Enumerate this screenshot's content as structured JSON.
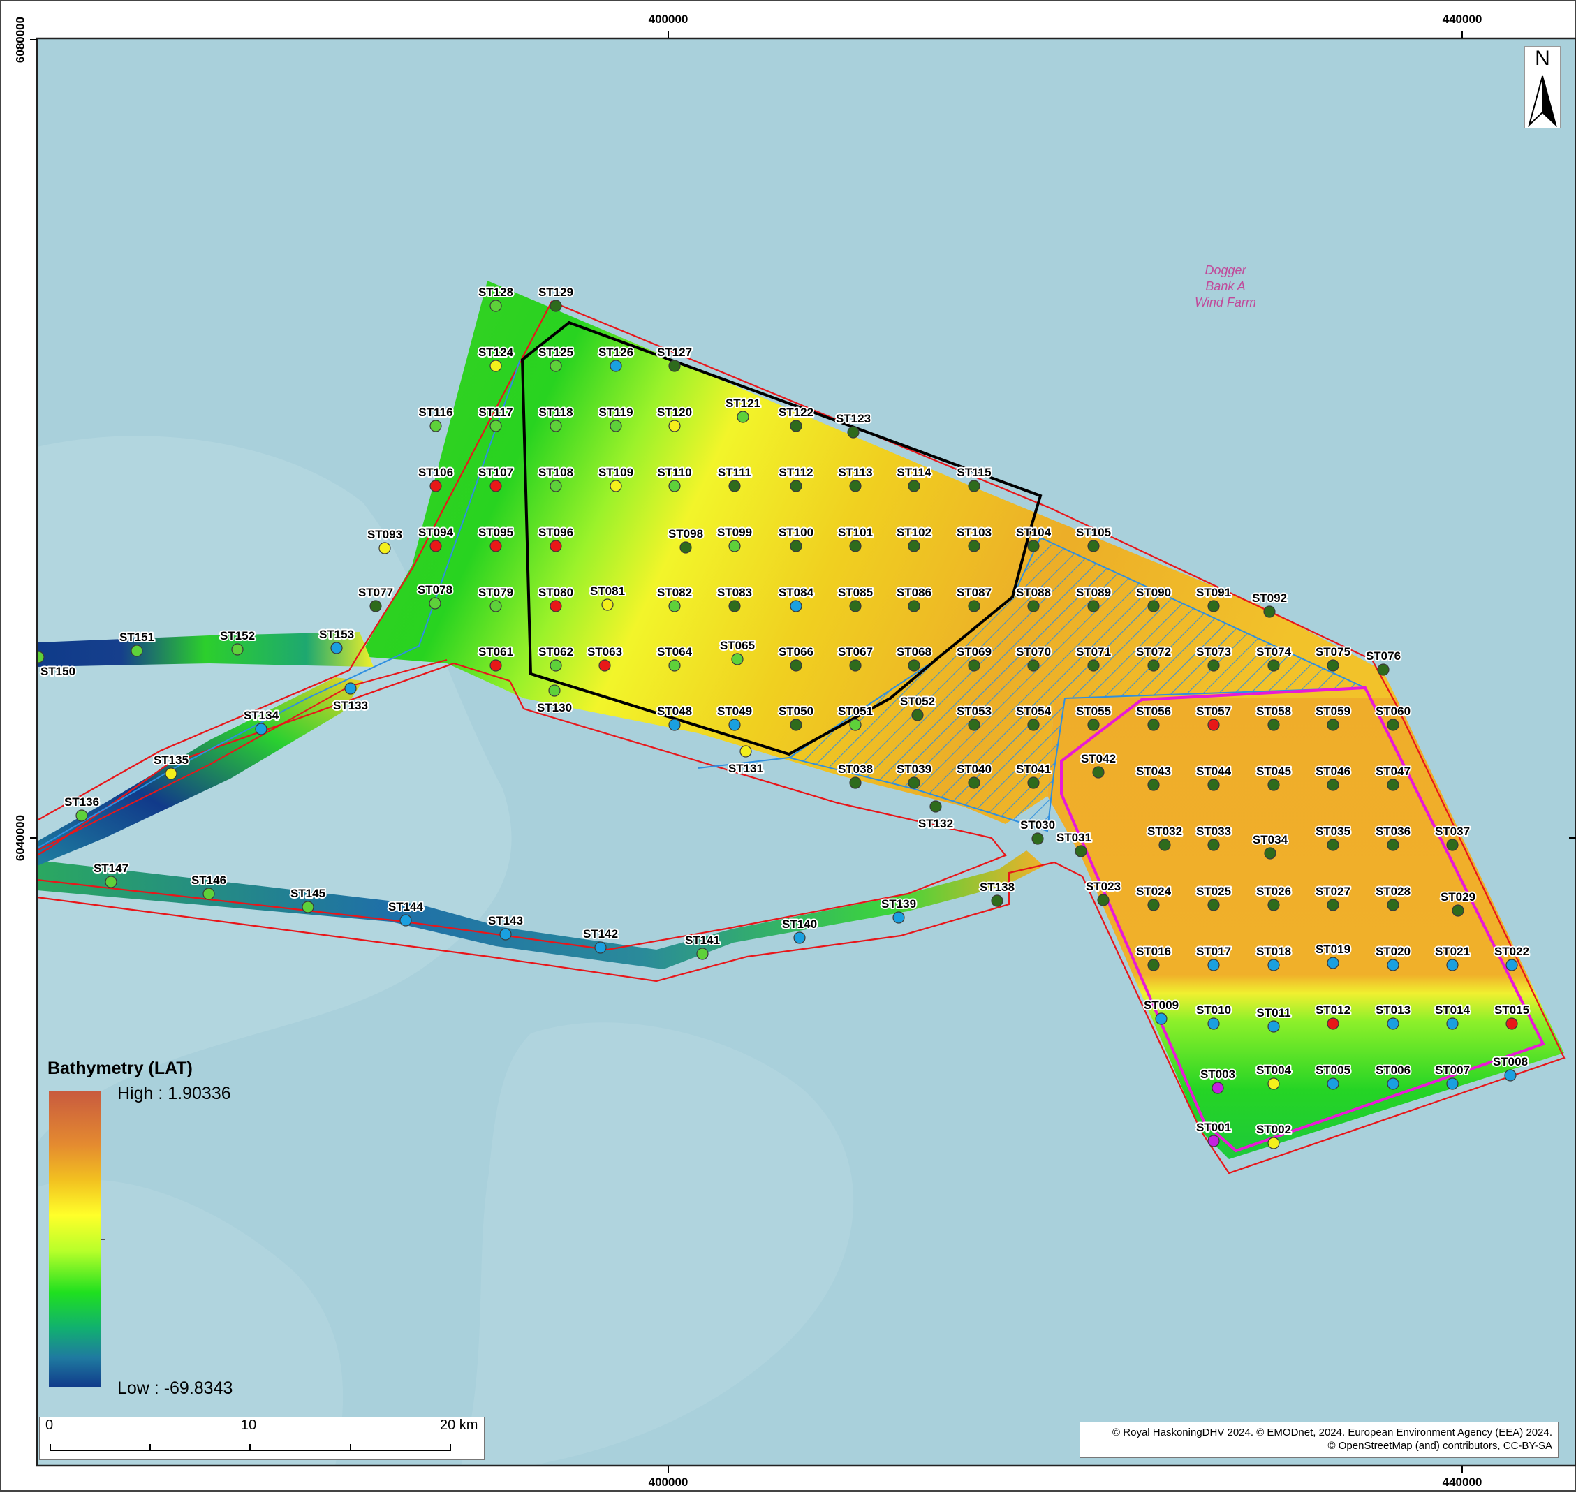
{
  "coords": {
    "x_top": [
      "400000",
      "440000"
    ],
    "x_bottom": [
      "400000",
      "440000"
    ],
    "y_left": [
      "6080000",
      "6040000"
    ]
  },
  "map_label": [
    "Dogger",
    "Bank A",
    "Wind Farm"
  ],
  "legend": {
    "title": "Bathymetry (LAT)",
    "high": "High : 1.90336",
    "low": "Low : -69.8343"
  },
  "scale": {
    "labels": [
      "0",
      "10",
      "20 km"
    ]
  },
  "attribution": {
    "line1": "© Royal HaskoningDHV 2024. © EMODnet, 2024. European Environment Agency (EEA) 2024.",
    "line2": "© OpenStreetMap (and) contributors, CC-BY-SA"
  },
  "north": "N",
  "colors": {
    "sea": "#a9d0db",
    "boundary_red": "#e8161a",
    "magenta": "#e91ad6",
    "blue_line": "#2f8fe0",
    "high": "#e6a12a",
    "low": "#103a8a"
  },
  "stations": [
    {
      "id": "ST001",
      "c": "magenta"
    },
    {
      "id": "ST002",
      "c": "yellow"
    },
    {
      "id": "ST003",
      "c": "magenta"
    },
    {
      "id": "ST004",
      "c": "yellow"
    },
    {
      "id": "ST005",
      "c": "blue"
    },
    {
      "id": "ST006",
      "c": "blue"
    },
    {
      "id": "ST007",
      "c": "blue"
    },
    {
      "id": "ST008",
      "c": "blue"
    },
    {
      "id": "ST009",
      "c": "blue"
    },
    {
      "id": "ST010",
      "c": "blue"
    },
    {
      "id": "ST011",
      "c": "blue"
    },
    {
      "id": "ST012",
      "c": "red"
    },
    {
      "id": "ST013",
      "c": "blue"
    },
    {
      "id": "ST014",
      "c": "blue"
    },
    {
      "id": "ST015",
      "c": "red"
    },
    {
      "id": "ST016",
      "c": "dark"
    },
    {
      "id": "ST017",
      "c": "blue"
    },
    {
      "id": "ST018",
      "c": "blue"
    },
    {
      "id": "ST019",
      "c": "blue"
    },
    {
      "id": "ST020",
      "c": "blue"
    },
    {
      "id": "ST021",
      "c": "blue"
    },
    {
      "id": "ST022",
      "c": "blue"
    },
    {
      "id": "ST023",
      "c": "dark"
    },
    {
      "id": "ST024",
      "c": "dark"
    },
    {
      "id": "ST025",
      "c": "dark"
    },
    {
      "id": "ST026",
      "c": "dark"
    },
    {
      "id": "ST027",
      "c": "dark"
    },
    {
      "id": "ST028",
      "c": "dark"
    },
    {
      "id": "ST029",
      "c": "dark"
    },
    {
      "id": "ST030",
      "c": "dark"
    },
    {
      "id": "ST031",
      "c": "dark"
    },
    {
      "id": "ST032",
      "c": "dark"
    },
    {
      "id": "ST033",
      "c": "dark"
    },
    {
      "id": "ST034",
      "c": "dark"
    },
    {
      "id": "ST035",
      "c": "dark"
    },
    {
      "id": "ST036",
      "c": "dark"
    },
    {
      "id": "ST037",
      "c": "dark"
    },
    {
      "id": "ST038",
      "c": "dark"
    },
    {
      "id": "ST039",
      "c": "dark"
    },
    {
      "id": "ST040",
      "c": "dark"
    },
    {
      "id": "ST041",
      "c": "dark"
    },
    {
      "id": "ST042",
      "c": "dark"
    },
    {
      "id": "ST043",
      "c": "dark"
    },
    {
      "id": "ST044",
      "c": "dark"
    },
    {
      "id": "ST045",
      "c": "dark"
    },
    {
      "id": "ST046",
      "c": "dark"
    },
    {
      "id": "ST047",
      "c": "dark"
    },
    {
      "id": "ST048",
      "c": "blue"
    },
    {
      "id": "ST049",
      "c": "blue"
    },
    {
      "id": "ST050",
      "c": "dark"
    },
    {
      "id": "ST051",
      "c": "light"
    },
    {
      "id": "ST052",
      "c": "dark"
    },
    {
      "id": "ST053",
      "c": "dark"
    },
    {
      "id": "ST054",
      "c": "dark"
    },
    {
      "id": "ST055",
      "c": "dark"
    },
    {
      "id": "ST056",
      "c": "dark"
    },
    {
      "id": "ST057",
      "c": "red"
    },
    {
      "id": "ST058",
      "c": "dark"
    },
    {
      "id": "ST059",
      "c": "dark"
    },
    {
      "id": "ST060",
      "c": "dark"
    },
    {
      "id": "ST061",
      "c": "red"
    },
    {
      "id": "ST062",
      "c": "light"
    },
    {
      "id": "ST063",
      "c": "red"
    },
    {
      "id": "ST064",
      "c": "light"
    },
    {
      "id": "ST065",
      "c": "light"
    },
    {
      "id": "ST066",
      "c": "dark"
    },
    {
      "id": "ST067",
      "c": "dark"
    },
    {
      "id": "ST068",
      "c": "dark"
    },
    {
      "id": "ST069",
      "c": "dark"
    },
    {
      "id": "ST070",
      "c": "dark"
    },
    {
      "id": "ST071",
      "c": "dark"
    },
    {
      "id": "ST072",
      "c": "dark"
    },
    {
      "id": "ST073",
      "c": "dark"
    },
    {
      "id": "ST074",
      "c": "dark"
    },
    {
      "id": "ST075",
      "c": "dark"
    },
    {
      "id": "ST076",
      "c": "dark"
    },
    {
      "id": "ST077",
      "c": "dark"
    },
    {
      "id": "ST078",
      "c": "light"
    },
    {
      "id": "ST079",
      "c": "light"
    },
    {
      "id": "ST080",
      "c": "red"
    },
    {
      "id": "ST081",
      "c": "yellow"
    },
    {
      "id": "ST082",
      "c": "light"
    },
    {
      "id": "ST083",
      "c": "dark"
    },
    {
      "id": "ST084",
      "c": "blue"
    },
    {
      "id": "ST085",
      "c": "dark"
    },
    {
      "id": "ST086",
      "c": "dark"
    },
    {
      "id": "ST087",
      "c": "dark"
    },
    {
      "id": "ST088",
      "c": "dark"
    },
    {
      "id": "ST089",
      "c": "dark"
    },
    {
      "id": "ST090",
      "c": "dark"
    },
    {
      "id": "ST091",
      "c": "dark"
    },
    {
      "id": "ST092",
      "c": "dark"
    },
    {
      "id": "ST093",
      "c": "yellow"
    },
    {
      "id": "ST094",
      "c": "red"
    },
    {
      "id": "ST095",
      "c": "red"
    },
    {
      "id": "ST096",
      "c": "red"
    },
    {
      "id": "ST098",
      "c": "dark"
    },
    {
      "id": "ST099",
      "c": "light"
    },
    {
      "id": "ST100",
      "c": "dark"
    },
    {
      "id": "ST101",
      "c": "dark"
    },
    {
      "id": "ST102",
      "c": "dark"
    },
    {
      "id": "ST103",
      "c": "dark"
    },
    {
      "id": "ST104",
      "c": "dark"
    },
    {
      "id": "ST105",
      "c": "dark"
    },
    {
      "id": "ST106",
      "c": "red"
    },
    {
      "id": "ST107",
      "c": "red"
    },
    {
      "id": "ST108",
      "c": "light"
    },
    {
      "id": "ST109",
      "c": "yellow"
    },
    {
      "id": "ST110",
      "c": "light"
    },
    {
      "id": "ST111",
      "c": "dark"
    },
    {
      "id": "ST112",
      "c": "dark"
    },
    {
      "id": "ST113",
      "c": "dark"
    },
    {
      "id": "ST114",
      "c": "dark"
    },
    {
      "id": "ST115",
      "c": "dark"
    },
    {
      "id": "ST116",
      "c": "light"
    },
    {
      "id": "ST117",
      "c": "light"
    },
    {
      "id": "ST118",
      "c": "light"
    },
    {
      "id": "ST119",
      "c": "light"
    },
    {
      "id": "ST120",
      "c": "yellow"
    },
    {
      "id": "ST121",
      "c": "light"
    },
    {
      "id": "ST122",
      "c": "dark"
    },
    {
      "id": "ST123",
      "c": "dark"
    },
    {
      "id": "ST124",
      "c": "yellow"
    },
    {
      "id": "ST125",
      "c": "light"
    },
    {
      "id": "ST126",
      "c": "blue"
    },
    {
      "id": "ST127",
      "c": "dark"
    },
    {
      "id": "ST128",
      "c": "light"
    },
    {
      "id": "ST129",
      "c": "dark"
    },
    {
      "id": "ST130",
      "c": "light"
    },
    {
      "id": "ST131",
      "c": "yellow"
    },
    {
      "id": "ST132",
      "c": "dark"
    },
    {
      "id": "ST133",
      "c": "blue"
    },
    {
      "id": "ST134",
      "c": "blue"
    },
    {
      "id": "ST135",
      "c": "yellow"
    },
    {
      "id": "ST136",
      "c": "light"
    },
    {
      "id": "ST138",
      "c": "dark"
    },
    {
      "id": "ST139",
      "c": "blue"
    },
    {
      "id": "ST140",
      "c": "blue"
    },
    {
      "id": "ST141",
      "c": "light"
    },
    {
      "id": "ST142",
      "c": "blue"
    },
    {
      "id": "ST143",
      "c": "blue"
    },
    {
      "id": "ST144",
      "c": "blue"
    },
    {
      "id": "ST145",
      "c": "light"
    },
    {
      "id": "ST146",
      "c": "light"
    },
    {
      "id": "ST147",
      "c": "light"
    },
    {
      "id": "ST150",
      "c": "light"
    },
    {
      "id": "ST151",
      "c": "light"
    },
    {
      "id": "ST152",
      "c": "light"
    },
    {
      "id": "ST153",
      "c": "blue"
    }
  ]
}
